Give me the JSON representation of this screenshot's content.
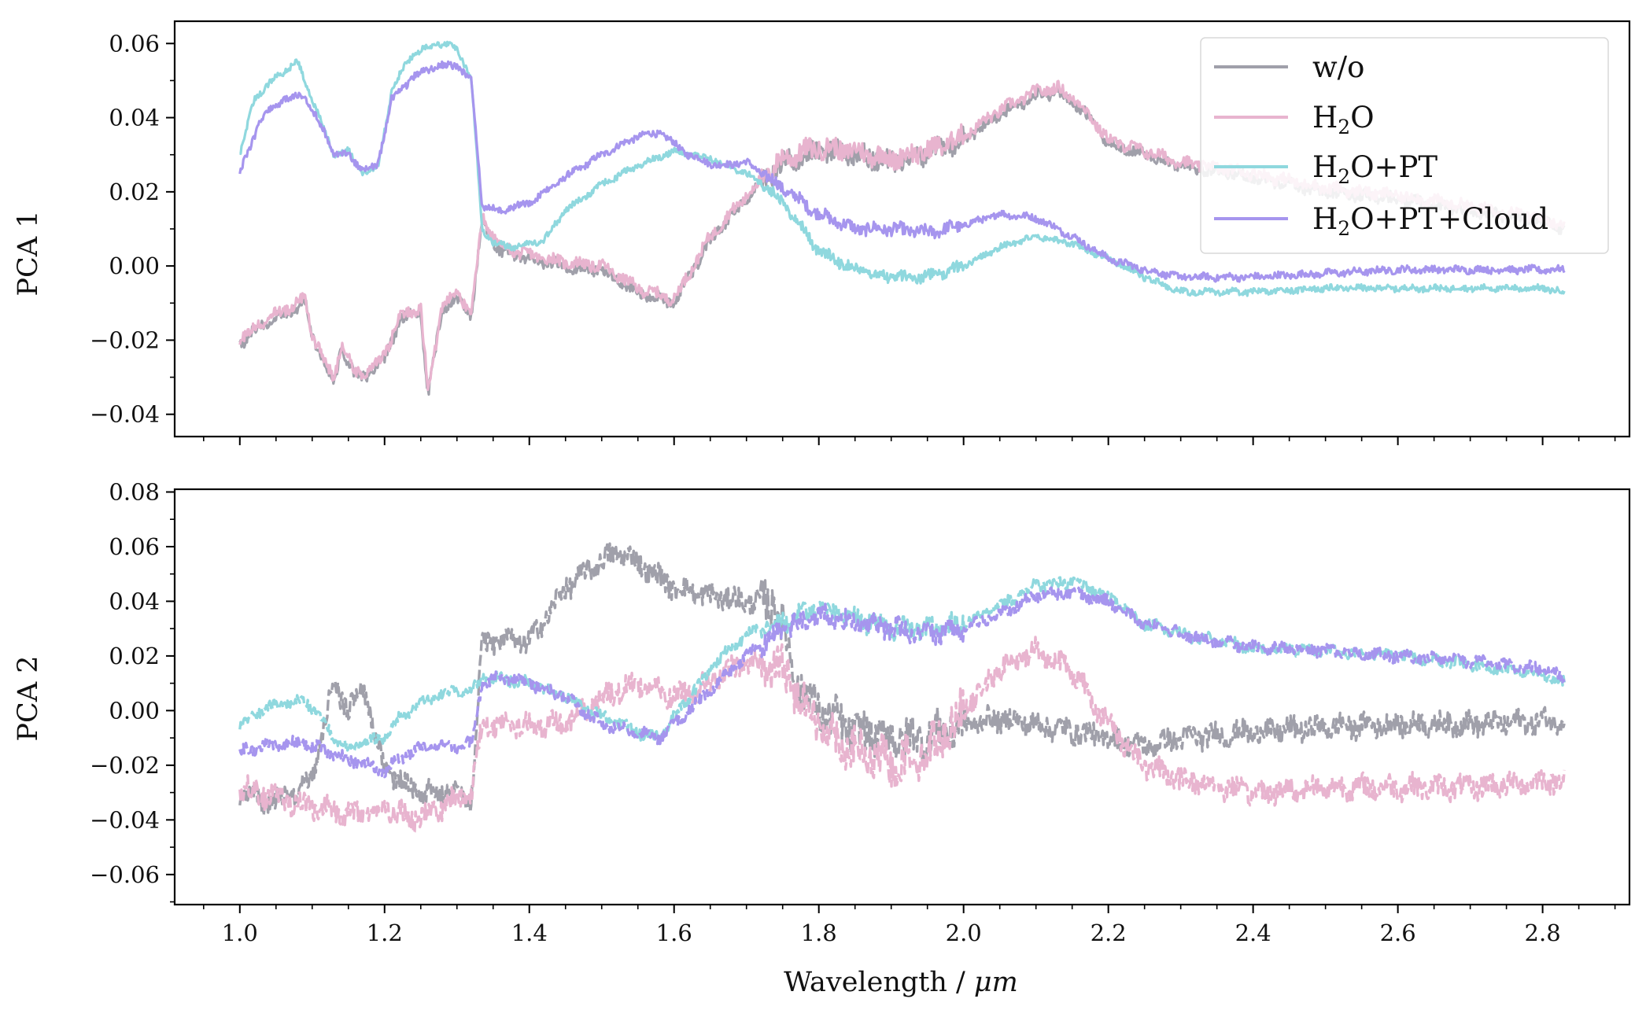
{
  "figure": {
    "xlabel": "Wavelength / μm",
    "xlabel_main": "Wavelength / ",
    "xlabel_unit": "μm"
  },
  "legend": {
    "entries": [
      {
        "label": "w/o",
        "color": "#a0a0aa"
      },
      {
        "label": "H2O",
        "label_base": "H",
        "label_sub": "2",
        "label_rest": "O",
        "color": "#e8b4cf"
      },
      {
        "label": "H2O+PT",
        "label_base": "H",
        "label_sub": "2",
        "label_rest": "O+PT",
        "color": "#8fd8de"
      },
      {
        "label": "H2O+PT+Cloud",
        "label_base": "H",
        "label_sub": "2",
        "label_rest": "O+PT+Cloud",
        "color": "#a695ee"
      }
    ]
  },
  "chart_data": [
    {
      "type": "line",
      "ylabel": "PCA 1",
      "xlim": [
        0.91,
        2.92
      ],
      "ylim": [
        -0.046,
        0.066
      ],
      "xticks": [
        1.0,
        1.2,
        1.4,
        1.6,
        1.8,
        2.0,
        2.2,
        2.4,
        2.6,
        2.8
      ],
      "xtick_labels": [],
      "yticks": [
        -0.04,
        -0.02,
        0.0,
        0.02,
        0.04,
        0.06
      ],
      "ytick_labels": [
        "−0.04",
        "−0.02",
        "0.00",
        "0.02",
        "0.04",
        "0.06"
      ],
      "line_style": "solid",
      "series": [
        {
          "name": "w/o",
          "color": "#a0a0aa",
          "noise": 0.0015,
          "x": [
            1.0,
            1.03,
            1.06,
            1.09,
            1.1,
            1.13,
            1.14,
            1.16,
            1.18,
            1.2,
            1.22,
            1.25,
            1.26,
            1.28,
            1.3,
            1.32,
            1.335,
            1.36,
            1.4,
            1.45,
            1.5,
            1.55,
            1.6,
            1.65,
            1.7,
            1.75,
            1.8,
            1.85,
            1.9,
            1.95,
            2.0,
            2.05,
            2.1,
            2.13,
            2.16,
            2.2,
            2.25,
            2.3,
            2.4,
            2.5,
            2.6,
            2.7,
            2.8,
            2.83
          ],
          "y": [
            -0.021,
            -0.016,
            -0.013,
            -0.01,
            -0.019,
            -0.032,
            -0.022,
            -0.03,
            -0.029,
            -0.025,
            -0.015,
            -0.012,
            -0.035,
            -0.011,
            -0.009,
            -0.013,
            0.012,
            0.004,
            0.002,
            0.0,
            -0.001,
            -0.007,
            -0.01,
            0.007,
            0.018,
            0.028,
            0.031,
            0.03,
            0.028,
            0.03,
            0.034,
            0.041,
            0.046,
            0.047,
            0.043,
            0.033,
            0.03,
            0.027,
            0.024,
            0.02,
            0.018,
            0.015,
            0.012,
            0.01
          ]
        },
        {
          "name": "H2O",
          "color": "#e8b4cf",
          "noise": 0.0015,
          "x": [
            1.0,
            1.03,
            1.06,
            1.09,
            1.1,
            1.13,
            1.14,
            1.16,
            1.18,
            1.2,
            1.22,
            1.25,
            1.26,
            1.28,
            1.3,
            1.32,
            1.335,
            1.36,
            1.4,
            1.45,
            1.5,
            1.55,
            1.6,
            1.65,
            1.7,
            1.75,
            1.8,
            1.85,
            1.9,
            1.95,
            2.0,
            2.05,
            2.1,
            2.13,
            2.16,
            2.2,
            2.25,
            2.3,
            2.4,
            2.5,
            2.6,
            2.7,
            2.8,
            2.83
          ],
          "y": [
            -0.02,
            -0.015,
            -0.012,
            -0.009,
            -0.018,
            -0.031,
            -0.021,
            -0.029,
            -0.028,
            -0.024,
            -0.014,
            -0.011,
            -0.034,
            -0.01,
            -0.008,
            -0.012,
            0.013,
            0.005,
            0.003,
            0.001,
            0.0,
            -0.006,
            -0.009,
            0.008,
            0.019,
            0.029,
            0.032,
            0.031,
            0.029,
            0.031,
            0.035,
            0.042,
            0.047,
            0.048,
            0.044,
            0.034,
            0.031,
            0.028,
            0.025,
            0.021,
            0.019,
            0.016,
            0.013,
            0.011
          ]
        },
        {
          "name": "H2O+PT",
          "color": "#8fd8de",
          "noise": 0.0008,
          "x": [
            1.0,
            1.02,
            1.05,
            1.08,
            1.09,
            1.11,
            1.13,
            1.15,
            1.17,
            1.19,
            1.21,
            1.23,
            1.24,
            1.27,
            1.3,
            1.32,
            1.335,
            1.35,
            1.38,
            1.42,
            1.45,
            1.5,
            1.55,
            1.6,
            1.65,
            1.7,
            1.73,
            1.76,
            1.8,
            1.85,
            1.9,
            1.95,
            2.0,
            2.05,
            2.1,
            2.15,
            2.2,
            2.25,
            2.3,
            2.4,
            2.5,
            2.6,
            2.7,
            2.8,
            2.83
          ],
          "y": [
            0.03,
            0.045,
            0.051,
            0.055,
            0.05,
            0.04,
            0.03,
            0.031,
            0.025,
            0.026,
            0.047,
            0.055,
            0.057,
            0.06,
            0.059,
            0.05,
            0.01,
            0.006,
            0.005,
            0.007,
            0.015,
            0.022,
            0.027,
            0.031,
            0.029,
            0.025,
            0.021,
            0.015,
            0.004,
            -0.001,
            -0.003,
            -0.003,
            0.0,
            0.005,
            0.008,
            0.006,
            0.002,
            -0.003,
            -0.007,
            -0.007,
            -0.006,
            -0.006,
            -0.006,
            -0.006,
            -0.007
          ]
        },
        {
          "name": "H2O+PT+Cloud",
          "color": "#a695ee",
          "noise": 0.0009,
          "x": [
            1.0,
            1.03,
            1.06,
            1.09,
            1.1,
            1.12,
            1.13,
            1.15,
            1.17,
            1.19,
            1.21,
            1.24,
            1.27,
            1.3,
            1.32,
            1.335,
            1.36,
            1.4,
            1.45,
            1.5,
            1.55,
            1.58,
            1.62,
            1.66,
            1.7,
            1.75,
            1.8,
            1.85,
            1.9,
            1.95,
            2.0,
            2.05,
            2.1,
            2.15,
            2.2,
            2.25,
            2.3,
            2.4,
            2.5,
            2.6,
            2.7,
            2.8,
            2.83
          ],
          "y": [
            0.025,
            0.04,
            0.045,
            0.046,
            0.042,
            0.035,
            0.03,
            0.03,
            0.026,
            0.027,
            0.045,
            0.051,
            0.054,
            0.054,
            0.05,
            0.016,
            0.015,
            0.017,
            0.024,
            0.03,
            0.035,
            0.036,
            0.03,
            0.027,
            0.028,
            0.021,
            0.014,
            0.01,
            0.01,
            0.009,
            0.011,
            0.014,
            0.013,
            0.008,
            0.002,
            -0.001,
            -0.003,
            -0.003,
            -0.002,
            -0.001,
            -0.001,
            -0.001,
            -0.001
          ]
        }
      ]
    },
    {
      "type": "line",
      "ylabel": "PCA 2",
      "xlabel": "Wavelength / μm",
      "xlim": [
        0.91,
        2.92
      ],
      "ylim": [
        -0.071,
        0.081
      ],
      "xticks": [
        1.0,
        1.2,
        1.4,
        1.6,
        1.8,
        2.0,
        2.2,
        2.4,
        2.6,
        2.8
      ],
      "xtick_labels": [
        "1.0",
        "1.2",
        "1.4",
        "1.6",
        "1.8",
        "2.0",
        "2.2",
        "2.4",
        "2.6",
        "2.8"
      ],
      "yticks": [
        -0.06,
        -0.04,
        -0.02,
        0.0,
        0.02,
        0.04,
        0.06,
        0.08
      ],
      "ytick_labels": [
        "−0.06",
        "−0.04",
        "−0.02",
        "0.00",
        "0.02",
        "0.04",
        "0.06",
        "0.08"
      ],
      "line_style": "dashed",
      "series": [
        {
          "name": "w/o",
          "color": "#a0a0aa",
          "noise": 0.004,
          "x": [
            1.0,
            1.03,
            1.06,
            1.1,
            1.13,
            1.15,
            1.17,
            1.2,
            1.25,
            1.3,
            1.32,
            1.335,
            1.36,
            1.4,
            1.45,
            1.5,
            1.53,
            1.56,
            1.6,
            1.65,
            1.7,
            1.74,
            1.77,
            1.8,
            1.85,
            1.9,
            1.95,
            2.0,
            2.05,
            2.1,
            2.2,
            2.25,
            2.3,
            2.4,
            2.5,
            2.6,
            2.7,
            2.8,
            2.83
          ],
          "y": [
            -0.03,
            -0.034,
            -0.033,
            -0.025,
            0.01,
            0.0,
            0.01,
            -0.022,
            -0.03,
            -0.03,
            -0.032,
            0.025,
            0.025,
            0.025,
            0.045,
            0.055,
            0.058,
            0.052,
            0.045,
            0.042,
            0.04,
            0.04,
            0.01,
            0.0,
            -0.008,
            -0.01,
            -0.01,
            -0.005,
            -0.003,
            -0.005,
            -0.01,
            -0.013,
            -0.01,
            -0.008,
            -0.006,
            -0.005,
            -0.005,
            -0.004,
            -0.003
          ]
        },
        {
          "name": "H2O",
          "color": "#e8b4cf",
          "noise": 0.004,
          "x": [
            1.0,
            1.05,
            1.1,
            1.15,
            1.2,
            1.25,
            1.3,
            1.32,
            1.335,
            1.4,
            1.45,
            1.5,
            1.55,
            1.6,
            1.65,
            1.7,
            1.75,
            1.8,
            1.85,
            1.9,
            1.95,
            2.0,
            2.05,
            2.1,
            2.15,
            2.2,
            2.25,
            2.3,
            2.4,
            2.5,
            2.6,
            2.7,
            2.8,
            2.83
          ],
          "y": [
            -0.028,
            -0.032,
            -0.035,
            -0.038,
            -0.036,
            -0.04,
            -0.032,
            -0.03,
            -0.005,
            -0.005,
            -0.005,
            0.005,
            0.01,
            0.005,
            0.01,
            0.018,
            0.015,
            -0.005,
            -0.015,
            -0.02,
            -0.015,
            0.0,
            0.015,
            0.022,
            0.015,
            -0.005,
            -0.02,
            -0.025,
            -0.03,
            -0.028,
            -0.028,
            -0.028,
            -0.026,
            -0.025
          ]
        },
        {
          "name": "H2O+PT",
          "color": "#8fd8de",
          "noise": 0.002,
          "x": [
            1.0,
            1.03,
            1.06,
            1.09,
            1.11,
            1.13,
            1.15,
            1.17,
            1.2,
            1.22,
            1.25,
            1.28,
            1.3,
            1.32,
            1.335,
            1.36,
            1.4,
            1.45,
            1.5,
            1.55,
            1.58,
            1.62,
            1.66,
            1.7,
            1.75,
            1.8,
            1.85,
            1.9,
            1.95,
            2.0,
            2.05,
            2.1,
            2.15,
            2.2,
            2.25,
            2.3,
            2.4,
            2.5,
            2.6,
            2.7,
            2.8,
            2.83
          ],
          "y": [
            -0.005,
            0.0,
            0.003,
            0.004,
            -0.002,
            -0.01,
            -0.014,
            -0.012,
            -0.01,
            -0.003,
            0.003,
            0.006,
            0.007,
            0.007,
            0.012,
            0.012,
            0.01,
            0.005,
            -0.002,
            -0.008,
            -0.01,
            0.005,
            0.018,
            0.028,
            0.032,
            0.038,
            0.034,
            0.03,
            0.03,
            0.032,
            0.038,
            0.046,
            0.047,
            0.042,
            0.032,
            0.028,
            0.023,
            0.022,
            0.02,
            0.017,
            0.013,
            0.01
          ]
        },
        {
          "name": "H2O+PT+Cloud",
          "color": "#a695ee",
          "noise": 0.002,
          "x": [
            1.0,
            1.03,
            1.06,
            1.09,
            1.12,
            1.15,
            1.18,
            1.2,
            1.23,
            1.25,
            1.28,
            1.3,
            1.32,
            1.335,
            1.36,
            1.4,
            1.45,
            1.5,
            1.55,
            1.58,
            1.62,
            1.66,
            1.7,
            1.75,
            1.8,
            1.85,
            1.9,
            1.95,
            2.0,
            2.05,
            2.1,
            2.15,
            2.2,
            2.25,
            2.3,
            2.4,
            2.5,
            2.6,
            2.7,
            2.8,
            2.83
          ],
          "y": [
            -0.015,
            -0.013,
            -0.012,
            -0.012,
            -0.015,
            -0.018,
            -0.02,
            -0.022,
            -0.016,
            -0.014,
            -0.013,
            -0.013,
            -0.012,
            0.01,
            0.012,
            0.01,
            0.005,
            -0.005,
            -0.008,
            -0.01,
            0.0,
            0.01,
            0.02,
            0.03,
            0.035,
            0.032,
            0.03,
            0.028,
            0.03,
            0.035,
            0.042,
            0.043,
            0.04,
            0.032,
            0.028,
            0.023,
            0.022,
            0.02,
            0.018,
            0.015,
            0.012
          ]
        }
      ]
    }
  ]
}
